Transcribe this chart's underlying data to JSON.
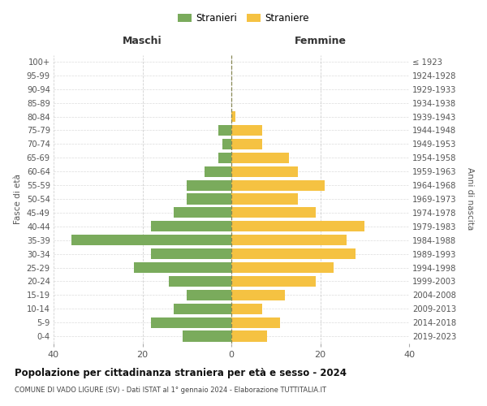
{
  "age_groups": [
    "0-4",
    "5-9",
    "10-14",
    "15-19",
    "20-24",
    "25-29",
    "30-34",
    "35-39",
    "40-44",
    "45-49",
    "50-54",
    "55-59",
    "60-64",
    "65-69",
    "70-74",
    "75-79",
    "80-84",
    "85-89",
    "90-94",
    "95-99",
    "100+"
  ],
  "birth_years": [
    "2019-2023",
    "2014-2018",
    "2009-2013",
    "2004-2008",
    "1999-2003",
    "1994-1998",
    "1989-1993",
    "1984-1988",
    "1979-1983",
    "1974-1978",
    "1969-1973",
    "1964-1968",
    "1959-1963",
    "1954-1958",
    "1949-1953",
    "1944-1948",
    "1939-1943",
    "1934-1938",
    "1929-1933",
    "1924-1928",
    "≤ 1923"
  ],
  "maschi": [
    11,
    18,
    13,
    10,
    14,
    22,
    18,
    36,
    18,
    13,
    10,
    10,
    6,
    3,
    2,
    3,
    0,
    0,
    0,
    0,
    0
  ],
  "femmine": [
    8,
    11,
    7,
    12,
    19,
    23,
    28,
    26,
    30,
    19,
    15,
    21,
    15,
    13,
    7,
    7,
    1,
    0,
    0,
    0,
    0
  ],
  "color_maschi": "#7aab5c",
  "color_femmine": "#f5c242",
  "background_color": "#ffffff",
  "grid_color": "#cccccc",
  "title": "Popolazione per cittadinanza straniera per età e sesso - 2024",
  "subtitle": "COMUNE DI VADO LIGURE (SV) - Dati ISTAT al 1° gennaio 2024 - Elaborazione TUTTITALIA.IT",
  "xlabel_left": "Maschi",
  "xlabel_right": "Femmine",
  "ylabel_left": "Fasce di età",
  "ylabel_right": "Anni di nascita",
  "legend_maschi": "Stranieri",
  "legend_femmine": "Straniere",
  "xlim": 40
}
